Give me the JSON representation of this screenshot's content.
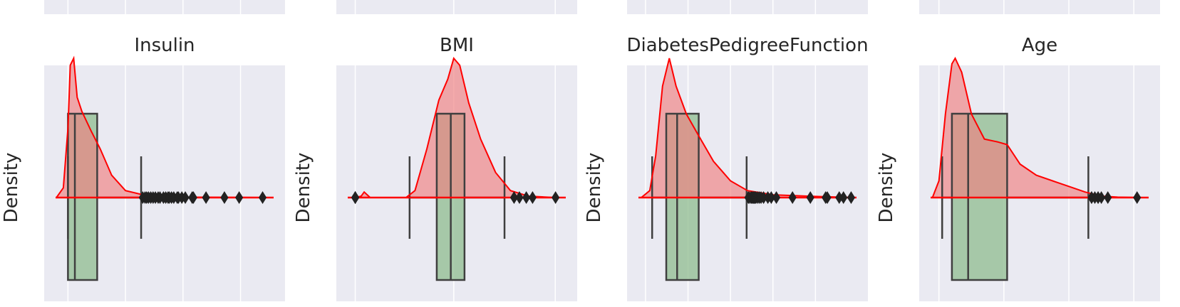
{
  "figure": {
    "background": "#ffffff",
    "axes_facecolor": "#eaeaf2",
    "grid_color": "#ffffff",
    "kde_color": "#ff0000",
    "kde_fill": "#f08080",
    "box_fill": "#8fbc8f",
    "box_edge": "#3f3f3f"
  },
  "chart_data": [
    {
      "type": "density-box",
      "title": "Insulin",
      "ylabel": "Density",
      "grid": true,
      "xlim": [
        -60,
        900
      ],
      "gridlines": [
        0,
        250,
        500,
        750
      ],
      "box": {
        "whislo": 0,
        "q1": 0,
        "median": 30,
        "q3": 127,
        "whishi": 318
      },
      "kde": [
        [
          -50,
          0
        ],
        [
          -20,
          0.07
        ],
        [
          0,
          0.5
        ],
        [
          10,
          0.95
        ],
        [
          25,
          1.0
        ],
        [
          40,
          0.72
        ],
        [
          60,
          0.62
        ],
        [
          100,
          0.48
        ],
        [
          140,
          0.35
        ],
        [
          190,
          0.16
        ],
        [
          250,
          0.05
        ],
        [
          350,
          0.01
        ],
        [
          500,
          0.003
        ],
        [
          870,
          0
        ]
      ],
      "fliers": [
        325,
        335,
        342,
        350,
        360,
        370,
        380,
        392,
        400,
        415,
        425,
        435,
        440,
        450,
        460,
        475,
        480,
        495,
        510,
        540,
        545,
        600,
        680,
        744,
        846
      ]
    },
    {
      "type": "density-box",
      "title": "BMI",
      "ylabel": "Density",
      "grid": true,
      "xlim": [
        -3,
        71
      ],
      "gridlines": [
        0,
        33,
        67
      ],
      "box": {
        "whislo": 18.2,
        "q1": 27.3,
        "median": 32,
        "q3": 36.6,
        "whishi": 50
      },
      "kde": [
        [
          0,
          0
        ],
        [
          2,
          0.01
        ],
        [
          3,
          0.04
        ],
        [
          5,
          0.0
        ],
        [
          17,
          0.0
        ],
        [
          20,
          0.05
        ],
        [
          24,
          0.35
        ],
        [
          28,
          0.7
        ],
        [
          31,
          0.85
        ],
        [
          33,
          1.0
        ],
        [
          35,
          0.95
        ],
        [
          38,
          0.68
        ],
        [
          42,
          0.42
        ],
        [
          47,
          0.18
        ],
        [
          52,
          0.05
        ],
        [
          58,
          0.01
        ],
        [
          67,
          0
        ]
      ],
      "fliers": [
        0,
        0,
        0,
        0,
        0,
        53.2,
        55,
        57.3,
        59.4,
        67.1
      ]
    },
    {
      "type": "density-box",
      "title": "DiabetesPedigreeFunction",
      "ylabel": "Density",
      "grid": true,
      "xlim": [
        -0.1,
        2.5
      ],
      "gridlines": [
        0,
        0.5,
        1,
        1.5,
        2
      ],
      "box": {
        "whislo": 0.078,
        "q1": 0.244,
        "median": 0.372,
        "q3": 0.626,
        "whishi": 1.19
      },
      "kde": [
        [
          -0.05,
          0
        ],
        [
          0.05,
          0.05
        ],
        [
          0.12,
          0.3
        ],
        [
          0.2,
          0.8
        ],
        [
          0.28,
          1.0
        ],
        [
          0.36,
          0.8
        ],
        [
          0.48,
          0.6
        ],
        [
          0.62,
          0.45
        ],
        [
          0.8,
          0.26
        ],
        [
          1.0,
          0.12
        ],
        [
          1.2,
          0.05
        ],
        [
          1.5,
          0.02
        ],
        [
          2.0,
          0.008
        ],
        [
          2.45,
          0
        ]
      ],
      "fliers": [
        1.21,
        1.22,
        1.24,
        1.25,
        1.26,
        1.27,
        1.28,
        1.29,
        1.3,
        1.32,
        1.34,
        1.36,
        1.39,
        1.44,
        1.48,
        1.54,
        1.73,
        1.94,
        2.12,
        2.14,
        2.28,
        2.33,
        2.42
      ]
    },
    {
      "type": "density-box",
      "title": "Age",
      "ylabel": "Density",
      "grid": true,
      "xlim": [
        17,
        85
      ],
      "gridlines": [
        20,
        40,
        60,
        80
      ],
      "box": {
        "whislo": 21,
        "q1": 24,
        "median": 29,
        "q3": 41,
        "whishi": 66
      },
      "kde": [
        [
          18,
          0
        ],
        [
          20,
          0.12
        ],
        [
          22,
          0.6
        ],
        [
          24,
          0.96
        ],
        [
          25,
          1.0
        ],
        [
          27,
          0.9
        ],
        [
          30,
          0.6
        ],
        [
          34,
          0.42
        ],
        [
          38,
          0.4
        ],
        [
          41,
          0.38
        ],
        [
          45,
          0.24
        ],
        [
          50,
          0.16
        ],
        [
          55,
          0.12
        ],
        [
          60,
          0.08
        ],
        [
          65,
          0.04
        ],
        [
          70,
          0.01
        ],
        [
          75,
          0.003
        ],
        [
          82,
          0
        ]
      ],
      "fliers": [
        67,
        67,
        68,
        69,
        69,
        70,
        72,
        81
      ]
    }
  ]
}
